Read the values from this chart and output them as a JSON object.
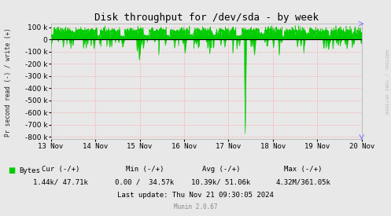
{
  "title": "Disk throughput for /dev/sda - by week",
  "ylabel": "Pr second read (-) / write (+)",
  "background_color": "#e8e8e8",
  "plot_bg_color": "#e8e8e8",
  "grid_color": "#ff9999",
  "line_color": "#00cc00",
  "ylim": [
    -820000,
    130000
  ],
  "ytick_vals": [
    -800000,
    -700000,
    -600000,
    -500000,
    -400000,
    -300000,
    -200000,
    -100000,
    0,
    100000
  ],
  "ytick_labels": [
    "-800 k",
    "-700 k",
    "-600 k",
    "-500 k",
    "-400 k",
    "-300 k",
    "-200 k",
    "-100 k",
    "0",
    "100 k"
  ],
  "xticklabels": [
    "13 Nov",
    "14 Nov",
    "15 Nov",
    "16 Nov",
    "17 Nov",
    "18 Nov",
    "19 Nov",
    "20 Nov"
  ],
  "legend_label": "Bytes",
  "legend_color": "#00cc00",
  "cur_label": "Cur (-/+)",
  "min_label": "Min (-/+)",
  "avg_label": "Avg (-/+)",
  "max_label": "Max (-/+)",
  "cur_val": "1.44k/ 47.71k",
  "min_val": "0.00 /  34.57k",
  "avg_val": "10.39k/ 51.06k",
  "max_val": "4.32M/361.05k",
  "last_update": "Last update: Thu Nov 21 09:30:05 2024",
  "munin_version": "Munin 2.0.67",
  "rrdtool_label": "RRDTOOL / TOBI OETIKER",
  "title_fontsize": 9,
  "axis_fontsize": 6.5,
  "legend_fontsize": 6.5,
  "arrow_color": "#8888ff"
}
